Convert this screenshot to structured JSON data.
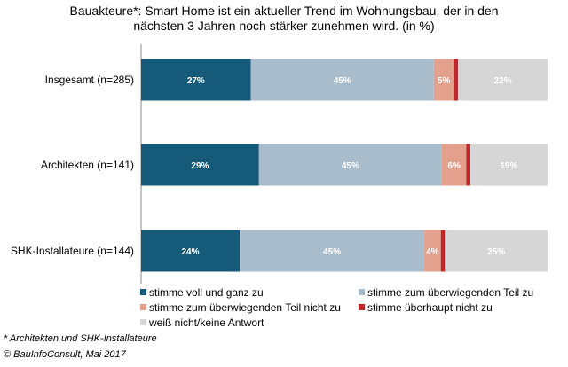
{
  "title_lines": [
    "Bauakteure*: Smart Home ist ein aktueller Trend im Wohnungsbau, der in den",
    "nächsten 3 Jahren noch stärker zunehmen wird. (in %)"
  ],
  "footnotes": {
    "note": "* Architekten und SHK-Installateure",
    "source": "© BauInfoConsult, Mai 2017"
  },
  "colors": {
    "stimme_voll": "#155a78",
    "ueberwiegend": "#a8bccb",
    "ueberwiegend_nicht": "#e3a18d",
    "ueberhaupt_nicht": "#c0262a",
    "weiss_nicht": "#d6d6d6"
  },
  "chart_data": {
    "type": "bar",
    "orientation": "horizontal",
    "stacked": true,
    "percent_stacked": true,
    "categories": [
      "Insgesamt (n=285)",
      "Architekten (n=141)",
      "SHK-Installateure (n=144)"
    ],
    "series": [
      {
        "name": "stimme voll und ganz zu",
        "color": "#155a78",
        "values": [
          27,
          29,
          24
        ],
        "labels": [
          "27%",
          "29%",
          "24%"
        ]
      },
      {
        "name": "stimme zum überwiegenden Teil zu",
        "color": "#a8bccb",
        "values": [
          45,
          45,
          45
        ],
        "labels": [
          "45%",
          "45%",
          "45%"
        ]
      },
      {
        "name": "stimme zum überwiegenden Teil nicht zu",
        "color": "#e3a18d",
        "values": [
          5,
          6,
          4
        ],
        "labels": [
          "5%",
          "6%",
          "4%"
        ]
      },
      {
        "name": "stimme überhaupt nicht zu",
        "color": "#c0262a",
        "values": [
          1,
          1,
          1
        ],
        "labels": [
          "",
          "",
          ""
        ]
      },
      {
        "name": "weiß nicht/keine Antwort",
        "color": "#d6d6d6",
        "values": [
          22,
          19,
          25
        ],
        "labels": [
          "22%",
          "19%",
          "25%"
        ]
      }
    ],
    "legend_position": "bottom",
    "grid": false
  }
}
